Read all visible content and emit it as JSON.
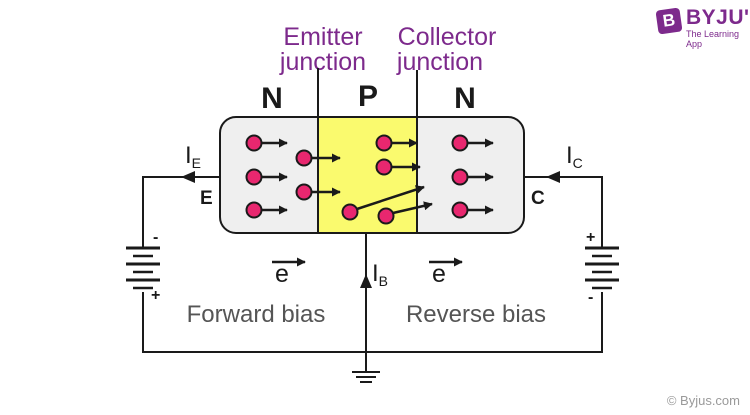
{
  "brand": {
    "logo_letter": "B",
    "name": "BYJU'S",
    "tagline": "The Learning App"
  },
  "labels": {
    "emitter_junction": [
      "Emitter",
      "junction"
    ],
    "collector_junction": [
      "Collector",
      "junction"
    ],
    "region_left": "N",
    "region_mid": "P",
    "region_right": "N",
    "current_emitter": "I",
    "current_emitter_sub": "E",
    "current_collector": "I",
    "current_collector_sub": "C",
    "current_base": "I",
    "current_base_sub": "B",
    "terminal_emitter": "E",
    "terminal_collector": "C",
    "electron_left": "e",
    "electron_right": "e",
    "forward_bias": "Forward bias",
    "reverse_bias": "Reverse bias",
    "battery_left_top_sign": "-",
    "battery_left_bottom_sign": "+",
    "battery_right_top_sign": "+",
    "battery_right_bottom_sign": "-",
    "copyright": "© Byjus.com"
  },
  "colors": {
    "n_region": "#efefef",
    "p_region": "#fafa6e",
    "electron": "#e8276f",
    "accent": "#7d2a8c",
    "wire": "#1a1a1a"
  }
}
